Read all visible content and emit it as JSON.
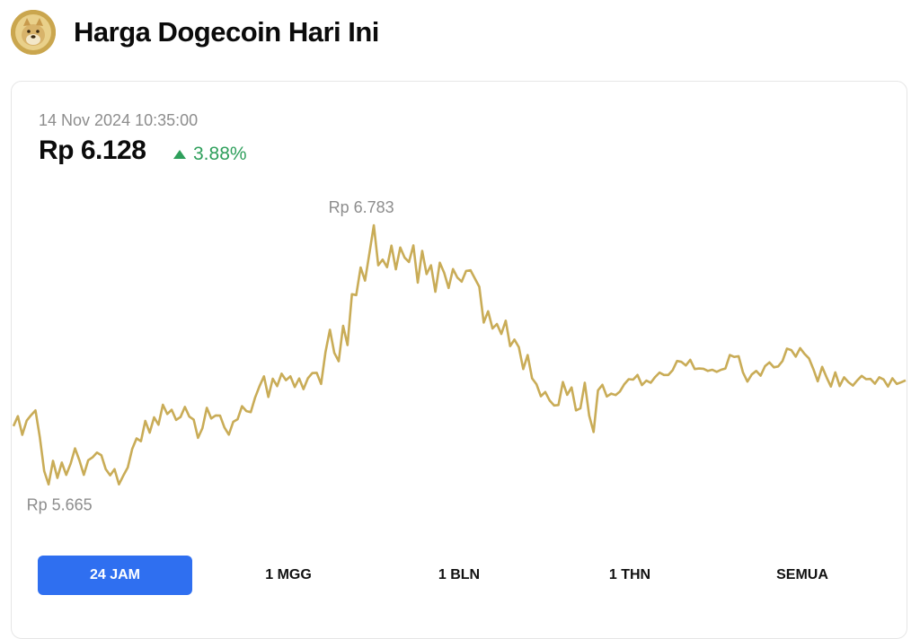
{
  "header": {
    "title": "Harga Dogecoin Hari Ini",
    "logo_icon": "dogecoin-logo-icon"
  },
  "summary": {
    "timestamp": "14 Nov 2024 10:35:00",
    "price": "Rp 6.128",
    "change": "3.88%",
    "change_direction": "up",
    "change_color": "#2e9f5b"
  },
  "ranges": {
    "items": [
      "24 JAM",
      "1 MGG",
      "1 BLN",
      "1 THN",
      "SEMUA"
    ],
    "active": "24 JAM",
    "active_color": "#2f6ff0"
  },
  "chart_data": {
    "type": "line",
    "line_color": "#c9ac57",
    "grid": false,
    "ylim": [
      5665,
      6783
    ],
    "annotations": {
      "high_label": "Rp 6.783",
      "low_label": "Rp 5.665"
    },
    "series": [
      {
        "values": [
          5935,
          5977,
          5898,
          5958,
          5981,
          6001,
          5889,
          5745,
          5689,
          5788,
          5716,
          5781,
          5729,
          5776,
          5841,
          5790,
          5729,
          5791,
          5803,
          5823,
          5812,
          5753,
          5727,
          5753,
          5689,
          5726,
          5760,
          5838,
          5883,
          5871,
          5957,
          5907,
          5972,
          5941,
          6025,
          5986,
          6004,
          5961,
          5973,
          6016,
          5975,
          5962,
          5885,
          5926,
          6012,
          5967,
          5980,
          5979,
          5929,
          5899,
          5953,
          5964,
          6019,
          5998,
          5994,
          6056,
          6104,
          6145,
          6058,
          6135,
          6104,
          6156,
          6129,
          6145,
          6100,
          6136,
          6091,
          6137,
          6159,
          6160,
          6113,
          6248,
          6342,
          6244,
          6209,
          6358,
          6277,
          6492,
          6488,
          6605,
          6549,
          6665,
          6783,
          6614,
          6638,
          6606,
          6697,
          6597,
          6689,
          6646,
          6628,
          6698,
          6541,
          6675,
          6577,
          6614,
          6502,
          6625,
          6582,
          6518,
          6598,
          6562,
          6545,
          6590,
          6593,
          6558,
          6523,
          6372,
          6420,
          6347,
          6366,
          6324,
          6380,
          6273,
          6300,
          6268,
          6176,
          6235,
          6137,
          6112,
          6061,
          6079,
          6043,
          6022,
          6024,
          6121,
          6067,
          6098,
          6001,
          6010,
          6118,
          5979,
          5910,
          6086,
          6109,
          6060,
          6072,
          6066,
          6081,
          6112,
          6133,
          6131,
          6151,
          6108,
          6127,
          6118,
          6142,
          6161,
          6151,
          6151,
          6171,
          6210,
          6206,
          6191,
          6215,
          6176,
          6178,
          6177,
          6168,
          6173,
          6164,
          6173,
          6178,
          6235,
          6227,
          6230,
          6161,
          6123,
          6153,
          6168,
          6148,
          6188,
          6204,
          6183,
          6187,
          6210,
          6262,
          6256,
          6228,
          6264,
          6240,
          6221,
          6176,
          6124,
          6185,
          6141,
          6102,
          6162,
          6104,
          6141,
          6120,
          6106,
          6128,
          6147,
          6133,
          6134,
          6114,
          6141,
          6132,
          6102,
          6137,
          6113,
          6120,
          6128
        ]
      }
    ]
  }
}
